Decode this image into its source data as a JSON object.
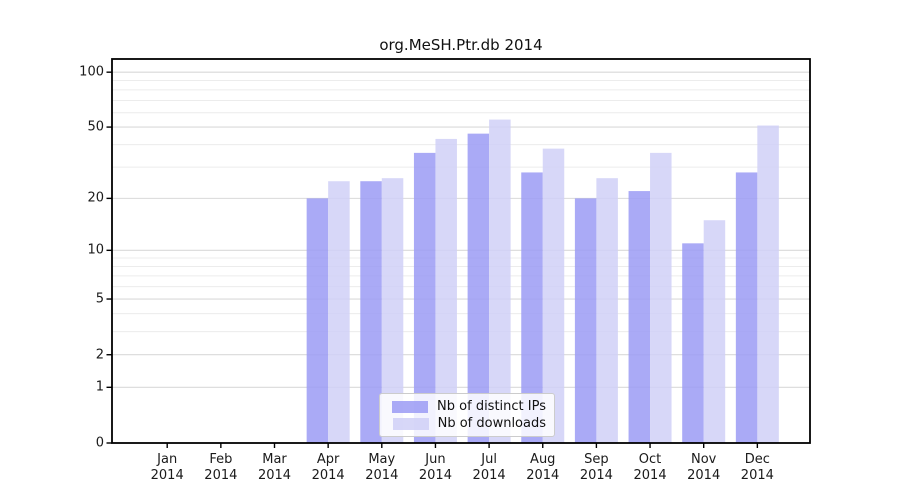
{
  "title": "org.MeSH.Ptr.db 2014",
  "chart_data": {
    "type": "bar",
    "title": "org.MeSH.Ptr.db 2014",
    "categories": [
      "Jan",
      "Feb",
      "Mar",
      "Apr",
      "May",
      "Jun",
      "Jul",
      "Aug",
      "Sep",
      "Oct",
      "Nov",
      "Dec"
    ],
    "year_label": "2014",
    "series": [
      {
        "name": "Nb of distinct IPs",
        "color": "#9b9bf5",
        "values": [
          0,
          0,
          0,
          20,
          25,
          36,
          46,
          28,
          20,
          22,
          11,
          28
        ]
      },
      {
        "name": "Nb of downloads",
        "color": "#d0d0f7",
        "values": [
          0,
          0,
          0,
          25,
          26,
          43,
          55,
          38,
          26,
          36,
          15,
          51
        ]
      }
    ],
    "bar_alpha": 0.85,
    "y_axis": {
      "scale": "log1p",
      "major_ticks": [
        0,
        1,
        2,
        5,
        10,
        20,
        50,
        100
      ],
      "major_tick_labels": [
        "0",
        "1",
        "2",
        "5",
        "10",
        "20",
        "50",
        "100"
      ],
      "minor_ticks": [
        3,
        4,
        6,
        7,
        8,
        9,
        30,
        40,
        60,
        70,
        80,
        90
      ],
      "ylim": [
        0,
        118
      ]
    },
    "xlabel": "",
    "ylabel": "",
    "grid": true,
    "gridline_major_color": "#d9d9d9",
    "gridline_minor_color": "#ececec",
    "legend": {
      "position": "lower center",
      "entries": [
        "Nb of distinct IPs",
        "Nb of downloads"
      ]
    }
  }
}
